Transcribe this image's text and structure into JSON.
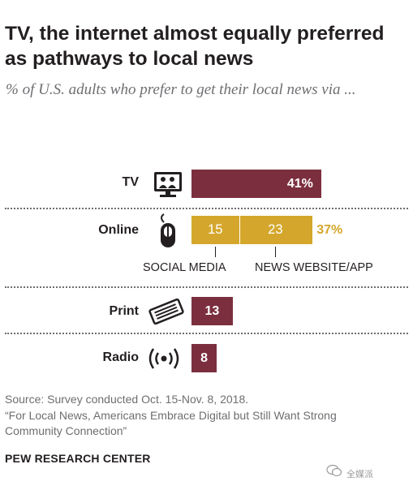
{
  "title": "TV, the internet almost equally preferred as pathways to local news",
  "subtitle": "% of U.S. adults who prefer to get their local news via ...",
  "colors": {
    "primary": "#7b2f3e",
    "online": "#d4a72c",
    "divider": "#6d6e71",
    "text": "#231f20"
  },
  "chart_data": {
    "type": "bar",
    "orientation": "horizontal",
    "stacked": true,
    "categories": [
      "TV",
      "Online",
      "Print",
      "Radio"
    ],
    "series": [
      {
        "name": "SOCIAL MEDIA",
        "values": [
          null,
          15,
          null,
          null
        ]
      },
      {
        "name": "NEWS WEBSITE/APP",
        "values": [
          null,
          23,
          null,
          null
        ]
      },
      {
        "values": [
          41,
          null,
          13,
          8
        ]
      }
    ],
    "totals": [
      41,
      37,
      13,
      8
    ],
    "labels": {
      "tv": "41%",
      "online_social": "15",
      "online_news": "23",
      "online_total": "37%",
      "print": "13",
      "radio": "8"
    },
    "icons": [
      "tv-icon",
      "mouse-icon",
      "newspaper-icon",
      "radio-waves-icon"
    ]
  },
  "rows": {
    "tv": {
      "label": "TV"
    },
    "online": {
      "label": "Online",
      "seg1_label": "SOCIAL MEDIA",
      "seg2_label": "NEWS WEBSITE/APP"
    },
    "print": {
      "label": "Print"
    },
    "radio": {
      "label": "Radio"
    }
  },
  "source_line1": "Source: Survey conducted Oct. 15-Nov. 8, 2018.",
  "source_line2": "“For Local News, Americans Embrace Digital but Still Want Strong",
  "source_line3": "Community Connection”",
  "brand": "PEW RESEARCH CENTER",
  "watermark": "全媒派"
}
